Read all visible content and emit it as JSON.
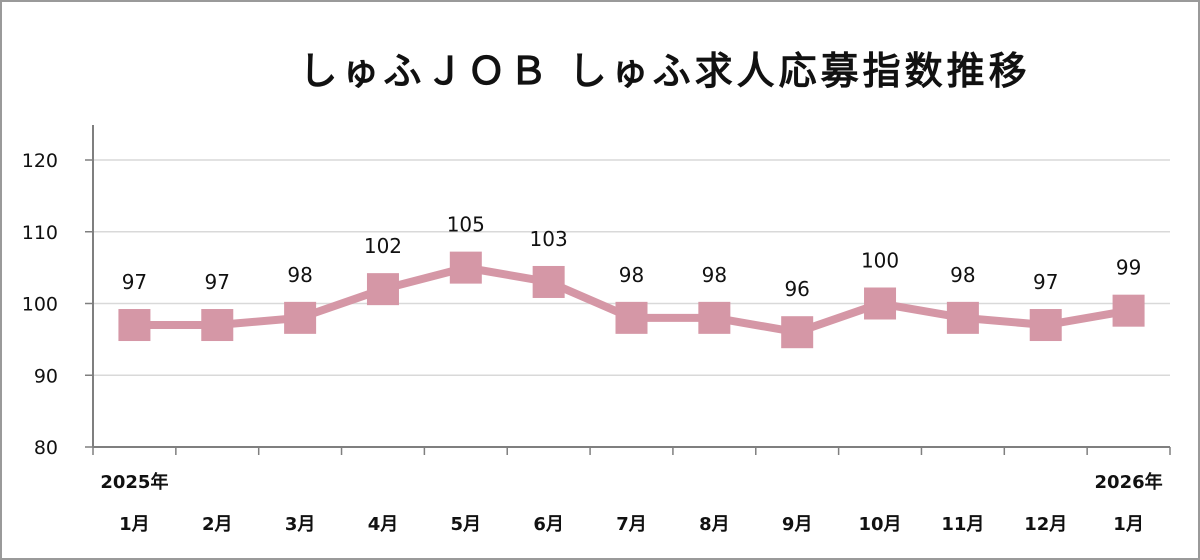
{
  "chart_data": {
    "type": "line",
    "title": "しゅふＪＯＢ しゅふ求人応募指数推移",
    "year_labels": [
      "2025年",
      "2026年"
    ],
    "categories": [
      "1月",
      "2月",
      "3月",
      "4月",
      "5月",
      "6月",
      "7月",
      "8月",
      "9月",
      "10月",
      "11月",
      "12月",
      "1月"
    ],
    "series": [
      {
        "values": [
          97,
          97,
          98,
          102,
          105,
          103,
          98,
          98,
          96,
          100,
          98,
          97,
          99
        ]
      }
    ],
    "ylim": [
      80,
      120
    ],
    "yticks": [
      80,
      90,
      100,
      110,
      120
    ],
    "grid": true,
    "colors": {
      "line": "#d597a6",
      "marker": "#d597a6",
      "grid": "#d9d9d9",
      "axis": "#7f7f7f"
    }
  }
}
